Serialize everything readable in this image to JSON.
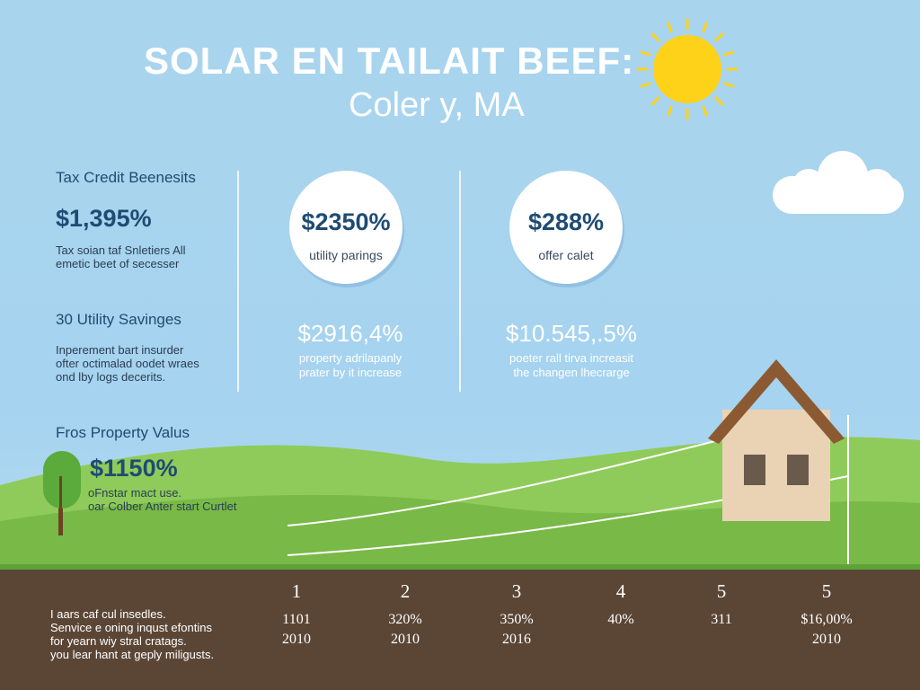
{
  "header": {
    "title": "SOLAR EN TAILAIT BEEF:",
    "subtitle": "Coler y, MA"
  },
  "left": {
    "tax": {
      "heading": "Tax Credit Beenesits",
      "value": "$1,395%",
      "line1": "Tax soian taf Snletiers All",
      "line2": "emetic beet of secesser"
    },
    "utility": {
      "heading": "30 Utility Savinges",
      "line1": "Inperement bart insurder",
      "line2": "ofter octimalad oodet wraes",
      "line3": "ond lby logs decerits."
    },
    "property": {
      "heading": "Fros Property Valus",
      "value": "$1150%",
      "line1": "oFnstar mact use.",
      "line2": "oar Colber Anter start Curtlet"
    }
  },
  "circles": [
    {
      "value": "$2350%",
      "label": "utility parings"
    },
    {
      "value": "$288%",
      "label": "offer calet"
    }
  ],
  "mid_stats": [
    {
      "value": "$2916,4%",
      "line1": "property adrilapanly",
      "line2": "prater by it increase"
    },
    {
      "value": "$10.545,.5%",
      "line1": "poeter rall tirva increasit",
      "line2": "the changen lhecrarge"
    }
  ],
  "footer": {
    "line1": "I aars caf cul insedles.",
    "line2": "Senvice e oning inqust efontins",
    "line3": "for yearn wiy stral cratags.",
    "line4": "you lear hant at geply miligusts."
  },
  "timeline": [
    {
      "num": "1",
      "v1": "1101",
      "v2": "2010"
    },
    {
      "num": "2",
      "v1": "320%",
      "v2": "2010"
    },
    {
      "num": "3",
      "v1": "350%",
      "v2": "2016"
    },
    {
      "num": "4",
      "v1": "40%",
      "v2": ""
    },
    {
      "num": "5",
      "v1": "311",
      "v2": ""
    },
    {
      "num": "5",
      "v1": "$16,00%",
      "v2": "2010"
    }
  ],
  "icons": [
    "sun-icon",
    "cloud-icon",
    "tree-icon",
    "house-icon"
  ],
  "colors": {
    "sky": "#a9d4ee",
    "grass": "#7cbd4a",
    "soil": "#5b4636",
    "sun": "#ffd21a",
    "heading_text": "#1f4b73",
    "roof": "#8b5a33",
    "house_wall": "#ead3b5"
  }
}
